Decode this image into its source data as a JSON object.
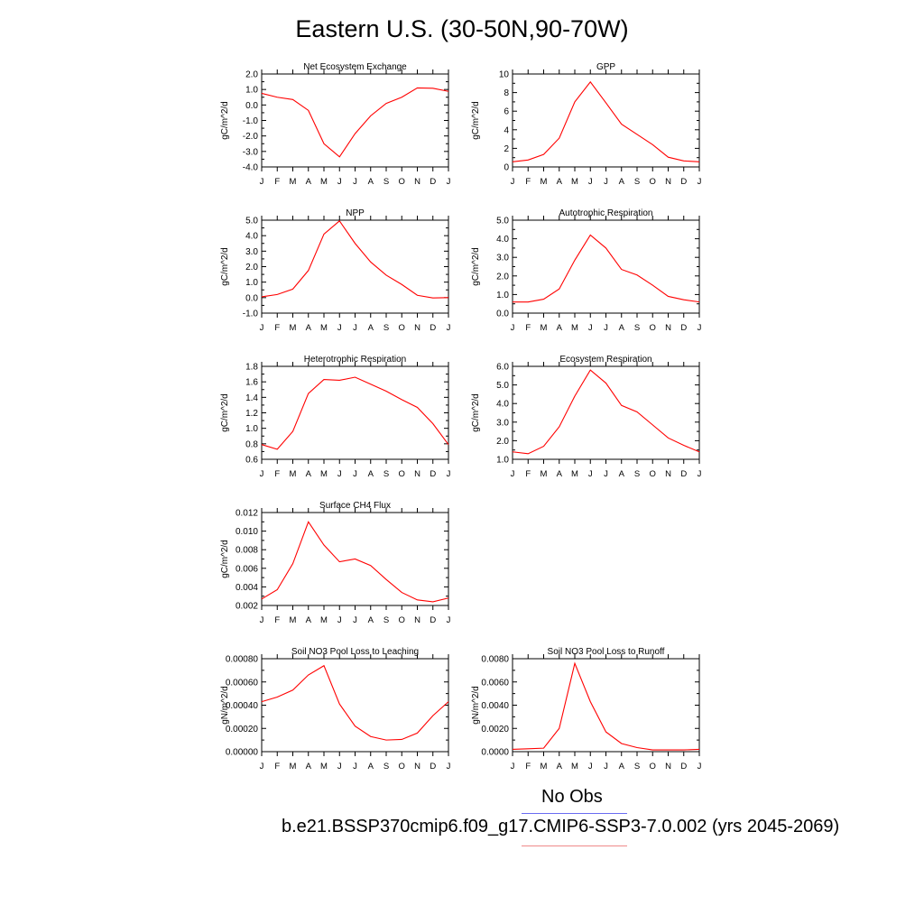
{
  "page_title": "Eastern U.S. (30-50N,90-70W)",
  "legend": [
    {
      "label": "No Obs",
      "color": "#6a6cf2"
    },
    {
      "label": "b.e21.BSSP370cmip6.f09_g17.CMIP6-SSP3-7.0.002 (yrs 2045-2069)",
      "color": "#f08a8a"
    }
  ],
  "line_color": "#ff0000",
  "month_ticks": [
    "J",
    "F",
    "M",
    "A",
    "M",
    "J",
    "J",
    "A",
    "S",
    "O",
    "N",
    "D",
    "J"
  ],
  "chart_data": [
    {
      "type": "line",
      "title": "Net Ecosystem Exchange",
      "ylabel": "gC/m^2/d",
      "ylim": [
        -4.0,
        2.0
      ],
      "yticks": [
        "-4.0",
        "-3.0",
        "-2.0",
        "-1.0",
        "0.0",
        "1.0",
        "2.0"
      ],
      "ytick_values": [
        -4,
        -3,
        -2,
        -1,
        0,
        1,
        2
      ],
      "values": [
        0.75,
        0.5,
        0.35,
        -0.35,
        -2.5,
        -3.35,
        -1.85,
        -0.7,
        0.1,
        0.5,
        1.1,
        1.08,
        0.88
      ]
    },
    {
      "type": "line",
      "title": "GPP",
      "ylabel": "gC/m^2/d",
      "ylim": [
        0,
        10
      ],
      "yticks": [
        "0",
        "2",
        "4",
        "6",
        "8",
        "10"
      ],
      "ytick_values": [
        0,
        2,
        4,
        6,
        8,
        10
      ],
      "values": [
        0.55,
        0.75,
        1.35,
        3.1,
        7.0,
        9.15,
        6.9,
        4.6,
        3.5,
        2.4,
        1.05,
        0.65,
        0.55
      ]
    },
    {
      "type": "line",
      "title": "NPP",
      "ylabel": "gC/m^2/d",
      "ylim": [
        -1.0,
        5.0
      ],
      "yticks": [
        "-1.0",
        "0.0",
        "1.0",
        "2.0",
        "3.0",
        "4.0",
        "5.0"
      ],
      "ytick_values": [
        -1,
        0,
        1,
        2,
        3,
        4,
        5
      ],
      "values": [
        0.05,
        0.2,
        0.55,
        1.75,
        4.1,
        4.95,
        3.5,
        2.3,
        1.45,
        0.85,
        0.15,
        -0.02,
        0.0
      ]
    },
    {
      "type": "line",
      "title": "Autotrophic Respiration",
      "ylabel": "gC/m^2/d",
      "ylim": [
        0.0,
        5.0
      ],
      "yticks": [
        "0.0",
        "1.0",
        "2.0",
        "3.0",
        "4.0",
        "5.0"
      ],
      "ytick_values": [
        0,
        1,
        2,
        3,
        4,
        5
      ],
      "values": [
        0.6,
        0.6,
        0.75,
        1.3,
        2.85,
        4.2,
        3.5,
        2.35,
        2.05,
        1.5,
        0.9,
        0.72,
        0.6
      ]
    },
    {
      "type": "line",
      "title": "Heterotrophic Respiration",
      "ylabel": "gC/m^2/d",
      "ylim": [
        0.6,
        1.8
      ],
      "yticks": [
        "0.6",
        "0.8",
        "1.0",
        "1.2",
        "1.4",
        "1.6",
        "1.8"
      ],
      "ytick_values": [
        0.6,
        0.8,
        1.0,
        1.2,
        1.4,
        1.6,
        1.8
      ],
      "values": [
        0.79,
        0.73,
        0.96,
        1.45,
        1.63,
        1.62,
        1.66,
        1.57,
        1.48,
        1.37,
        1.27,
        1.06,
        0.79
      ]
    },
    {
      "type": "line",
      "title": "Ecosystem Respiration",
      "ylabel": "gC/m^2/d",
      "ylim": [
        1.0,
        6.0
      ],
      "yticks": [
        "1.0",
        "2.0",
        "3.0",
        "4.0",
        "5.0",
        "6.0"
      ],
      "ytick_values": [
        1,
        2,
        3,
        4,
        5,
        6
      ],
      "values": [
        1.4,
        1.3,
        1.7,
        2.75,
        4.4,
        5.8,
        5.1,
        3.9,
        3.55,
        2.85,
        2.15,
        1.75,
        1.4
      ]
    },
    {
      "type": "line",
      "title": "Surface CH4 Flux",
      "ylabel": "gC/m^2/d",
      "ylim": [
        0.002,
        0.012
      ],
      "yticks": [
        "0.002",
        "0.004",
        "0.006",
        "0.008",
        "0.010",
        "0.012"
      ],
      "ytick_values": [
        0.002,
        0.004,
        0.006,
        0.008,
        0.01,
        0.012
      ],
      "values": [
        0.0027,
        0.0037,
        0.0065,
        0.011,
        0.0085,
        0.0067,
        0.007,
        0.0063,
        0.0048,
        0.0034,
        0.0026,
        0.0024,
        0.0028
      ]
    },
    null,
    {
      "type": "line",
      "title": "Soil NO3 Pool Loss to Leaching",
      "ylabel": "gN/m^2/d",
      "ylim": [
        0.0,
        0.0008
      ],
      "yticks": [
        "0.00000",
        "0.00020",
        "0.00040",
        "0.00060",
        "0.00080"
      ],
      "ytick_values": [
        0,
        0.0002,
        0.0004,
        0.0006,
        0.0008
      ],
      "values": [
        0.00043,
        0.00047,
        0.00053,
        0.00066,
        0.00074,
        0.00041,
        0.00022,
        0.00013,
        0.0001,
        0.000105,
        0.00016,
        0.00031,
        0.00043
      ]
    },
    {
      "type": "line",
      "title": "Soil NO3 Pool Loss to Runoff",
      "ylabel": "gN/m^2/d",
      "ylim": [
        0.0,
        0.008
      ],
      "yticks": [
        "0.0000",
        "0.0020",
        "0.0040",
        "0.0060",
        "0.0080"
      ],
      "ytick_values": [
        0,
        0.002,
        0.004,
        0.006,
        0.008
      ],
      "values": [
        0.0002,
        0.00025,
        0.0003,
        0.002,
        0.0076,
        0.0043,
        0.0017,
        0.0007,
        0.00035,
        0.00015,
        0.00015,
        0.00015,
        0.0002
      ]
    }
  ]
}
